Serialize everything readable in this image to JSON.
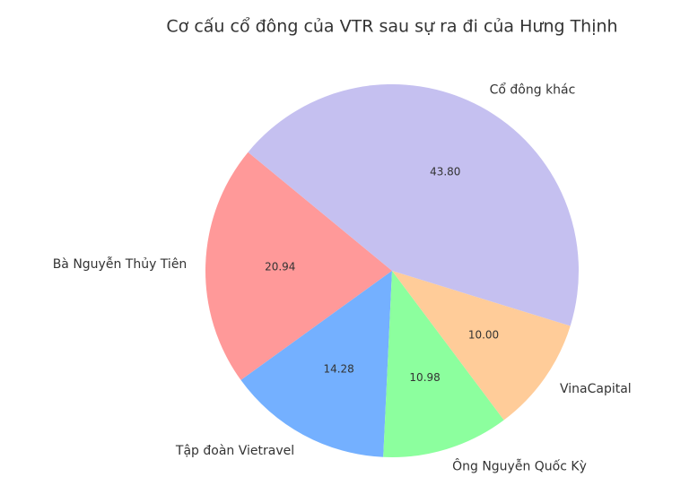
{
  "chart_data": {
    "type": "pie",
    "title": "Cơ cấu cổ đông của VTR sau sự ra đi của Hưng Thịnh",
    "categories": [
      "Bà Nguyễn Thủy Tiên",
      "Tập đoàn Vietravel",
      "Ông Nguyễn Quốc Kỳ",
      "VinaCapital",
      "Cổ đông khác"
    ],
    "values": [
      20.94,
      14.28,
      10.98,
      10.0,
      43.8
    ],
    "value_labels": [
      "20.94",
      "14.28",
      "10.98",
      "10.00",
      "43.80"
    ],
    "colors": [
      "#ff9999",
      "#74b0ff",
      "#8cff9e",
      "#ffcc99",
      "#c5c0f0"
    ]
  }
}
